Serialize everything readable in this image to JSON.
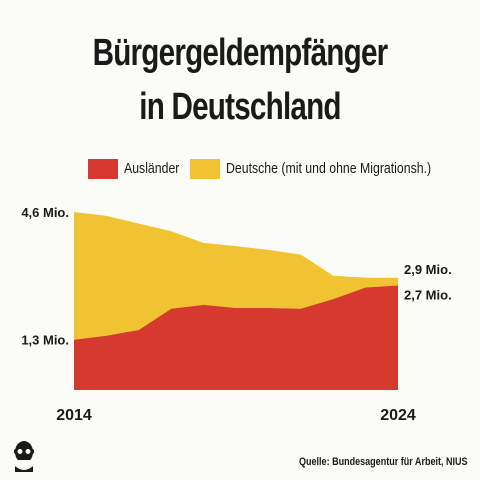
{
  "chart_data": {
    "type": "area",
    "stacked": true,
    "title": "Bürgergeldempfänger",
    "subtitle": "in Deutschland",
    "x": [
      2014,
      2015,
      2016,
      2017,
      2018,
      2019,
      2020,
      2021,
      2022,
      2023,
      2024
    ],
    "xtick_labels": [
      "2014",
      "2024"
    ],
    "series": [
      {
        "name": "Ausländer",
        "color": "#d63a2f",
        "values": [
          1.3,
          1.4,
          1.55,
          2.1,
          2.2,
          2.12,
          2.12,
          2.1,
          2.35,
          2.65,
          2.7
        ]
      },
      {
        "name": "Deutsche (mit und ohne Migrationsh.)",
        "color": "#f1c232",
        "values": [
          3.3,
          3.1,
          2.75,
          2.0,
          1.6,
          1.6,
          1.5,
          1.4,
          0.6,
          0.25,
          0.2
        ]
      }
    ],
    "annotations": {
      "start_total": "4,6 Mio.",
      "start_auslaender": "1,3 Mio.",
      "end_total": "2,9 Mio.",
      "end_auslaender": "2,7 Mio."
    },
    "ylim": [
      0,
      4.6
    ],
    "legend_position": "top",
    "grid": false
  },
  "source": "Quelle: Bundesagentur für Arbeit, NIUS",
  "logo_icon": "nius-face-logo-icon"
}
